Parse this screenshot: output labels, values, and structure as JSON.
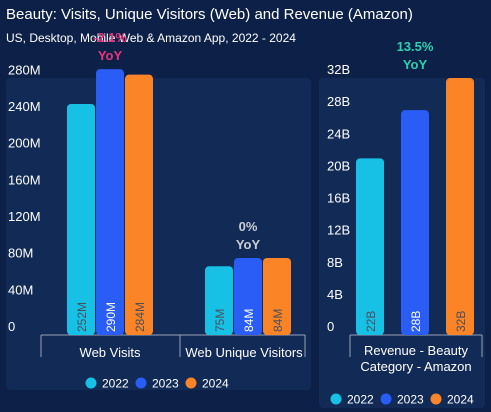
{
  "header": {
    "title": "Beauty: Visits, Unique Visitors (Web) and Revenue (Amazon)",
    "subtitle": "US, Desktop, Mobile Web & Amazon App, 2022 - 2024"
  },
  "colors": {
    "background": "#0d2148",
    "2022": "#17c1e6",
    "2023": "#2a5cf6",
    "2024": "#fb8526",
    "yoy_negative": "#e8347a",
    "yoy_positive": "#2ad3b0",
    "yoy_neutral": "#c9cdd6",
    "axis_text": "#ffffff",
    "bar_label": "#4a4f5c"
  },
  "chart_data": [
    {
      "type": "bar",
      "categories": [
        "Web Visits",
        "Web Unique Visitors"
      ],
      "series": [
        {
          "name": "2022",
          "values": [
            252,
            75
          ],
          "labels": [
            "252M",
            "75M"
          ]
        },
        {
          "name": "2023",
          "values": [
            290,
            84
          ],
          "labels": [
            "290M",
            "84M"
          ]
        },
        {
          "name": "2024",
          "values": [
            284,
            84
          ],
          "labels": [
            "284M",
            "84M"
          ]
        }
      ],
      "yoy": [
        {
          "value": "-2.1%",
          "unit": "YoY",
          "tone": "negative"
        },
        {
          "value": "0%",
          "unit": "YoY",
          "tone": "neutral"
        }
      ],
      "ylim": [
        0,
        300
      ],
      "y_ticks": [
        0,
        40,
        80,
        120,
        160,
        200,
        240,
        280
      ],
      "y_tick_labels": [
        "0",
        "40M",
        "80M",
        "120M",
        "160M",
        "200M",
        "240M",
        "280M"
      ],
      "legend": [
        "2022",
        "2023",
        "2024"
      ],
      "legend_position": "bottom"
    },
    {
      "type": "bar",
      "categories": [
        "Revenue - Beauty Category - Amazon"
      ],
      "series": [
        {
          "name": "2022",
          "values": [
            22
          ],
          "labels": [
            "22B"
          ]
        },
        {
          "name": "2023",
          "values": [
            28
          ],
          "labels": [
            "28B"
          ]
        },
        {
          "name": "2024",
          "values": [
            32
          ],
          "labels": [
            "32B"
          ]
        }
      ],
      "yoy": [
        {
          "value": "13.5%",
          "unit": "YoY",
          "tone": "positive"
        }
      ],
      "ylim": [
        0,
        34
      ],
      "y_ticks": [
        0,
        4,
        8,
        12,
        16,
        20,
        24,
        28,
        32
      ],
      "y_tick_labels": [
        "0",
        "4B",
        "8B",
        "12B",
        "16B",
        "20B",
        "24B",
        "28B",
        "32B"
      ],
      "category_label_lines": [
        "Revenue - Beauty",
        "Category - Amazon"
      ],
      "legend": [
        "2022",
        "2023",
        "2024"
      ],
      "legend_position": "bottom"
    }
  ]
}
